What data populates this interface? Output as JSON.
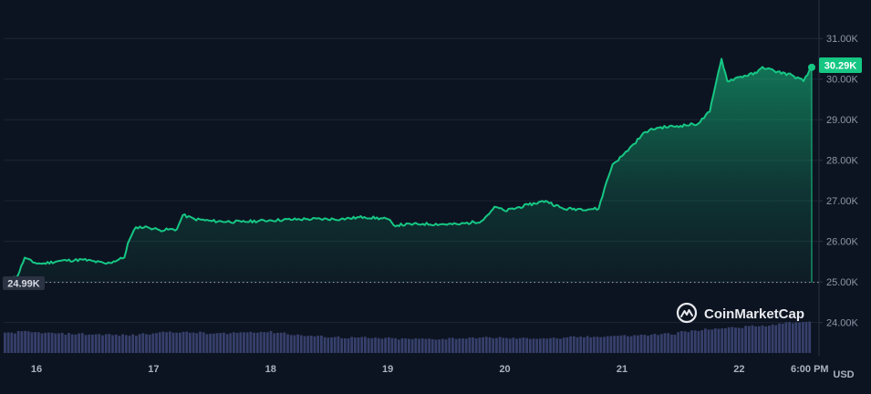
{
  "chart_data": {
    "type": "area",
    "x_tick_labels": [
      "16",
      "17",
      "18",
      "19",
      "20",
      "21",
      "22",
      "6:00 PM"
    ],
    "y_tick_labels": [
      "31.00K",
      "30.00K",
      "29.00K",
      "28.00K",
      "27.00K",
      "26.00K",
      "25.00K",
      "24.00K"
    ],
    "y_ticks": [
      31000,
      30000,
      29000,
      28000,
      27000,
      26000,
      25000,
      24000
    ],
    "ylim": [
      23250,
      31500
    ],
    "xlim": [
      15.72,
      22.62
    ],
    "unit": "USD",
    "reference_line": {
      "value": 24990,
      "label": "24.99K"
    },
    "current_price": {
      "value": 30290,
      "label": "30.29K"
    },
    "series": [
      {
        "type": "line-area",
        "x": [
          15.72,
          15.84,
          15.9,
          15.97,
          16.05,
          16.2,
          16.4,
          16.6,
          16.75,
          16.78,
          16.85,
          16.95,
          17.05,
          17.2,
          17.25,
          17.35,
          17.5,
          17.75,
          18.0,
          18.3,
          18.6,
          18.8,
          19.0,
          19.05,
          19.3,
          19.6,
          19.8,
          19.9,
          19.92,
          20.0,
          20.2,
          20.35,
          20.5,
          20.65,
          20.8,
          20.85,
          20.92,
          21.0,
          21.1,
          21.2,
          21.3,
          21.5,
          21.65,
          21.75,
          21.78,
          21.81,
          21.85,
          21.9,
          22.0,
          22.15,
          22.2,
          22.3,
          22.45,
          22.55,
          22.62
        ],
        "values": [
          24990,
          25150,
          25600,
          25480,
          25450,
          25520,
          25550,
          25450,
          25600,
          25950,
          26350,
          26350,
          26280,
          26300,
          26650,
          26550,
          26500,
          26480,
          26520,
          26550,
          26550,
          26600,
          26550,
          26400,
          26430,
          26420,
          26500,
          26800,
          26850,
          26750,
          26900,
          27000,
          26800,
          26800,
          26800,
          27300,
          27900,
          28100,
          28400,
          28700,
          28800,
          28850,
          28900,
          29200,
          29600,
          30000,
          30500,
          29950,
          30050,
          30150,
          30300,
          30200,
          30100,
          29950,
          30290
        ]
      },
      {
        "type": "volume",
        "levels": [
          0.32,
          0.33,
          0.32,
          0.31,
          0.3,
          0.3,
          0.29,
          0.29,
          0.28,
          0.28,
          0.3,
          0.32,
          0.33,
          0.32,
          0.32,
          0.3,
          0.31,
          0.32,
          0.33,
          0.33,
          0.32,
          0.29,
          0.27,
          0.26,
          0.25,
          0.24,
          0.24,
          0.23,
          0.23,
          0.22,
          0.22,
          0.22,
          0.22,
          0.23,
          0.23,
          0.24,
          0.24,
          0.23,
          0.23,
          0.23,
          0.23,
          0.23,
          0.25,
          0.25,
          0.26,
          0.27,
          0.27,
          0.28,
          0.29,
          0.3,
          0.33,
          0.35,
          0.37,
          0.39,
          0.4,
          0.42,
          0.43,
          0.45,
          0.47,
          0.49
        ]
      }
    ]
  },
  "watermark": {
    "text": "CoinMarketCap"
  },
  "colors": {
    "background": "#0d1421",
    "line": "#16c784",
    "badge": "#16c784",
    "volume": "#36406b"
  }
}
